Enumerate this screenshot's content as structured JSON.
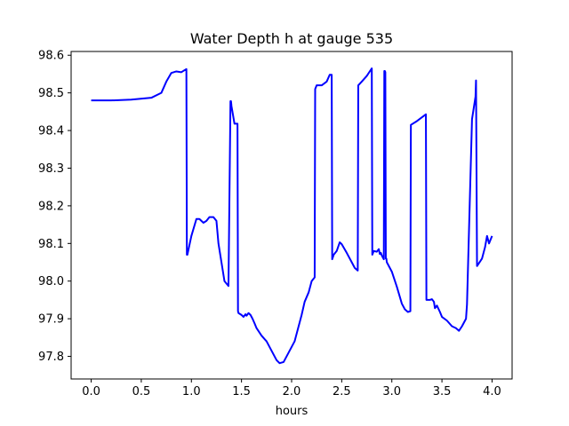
{
  "chart_data": {
    "type": "line",
    "title": "Water Depth h at gauge 535",
    "xlabel": "hours",
    "ylabel": "",
    "xlim": [
      -0.2,
      4.2
    ],
    "ylim": [
      97.74,
      98.61
    ],
    "xticks": [
      0.0,
      0.5,
      1.0,
      1.5,
      2.0,
      2.5,
      3.0,
      3.5,
      4.0
    ],
    "xtick_labels": [
      "0.0",
      "0.5",
      "1.0",
      "1.5",
      "2.0",
      "2.5",
      "3.0",
      "3.5",
      "4.0"
    ],
    "yticks": [
      97.8,
      97.9,
      98.0,
      98.1,
      98.2,
      98.3,
      98.4,
      98.5,
      98.6
    ],
    "ytick_labels": [
      "97.8",
      "97.9",
      "98.0",
      "98.1",
      "98.2",
      "98.3",
      "98.4",
      "98.5",
      "98.6"
    ],
    "grid": false,
    "line_color": "#0000ff",
    "series": [
      {
        "x": [
          0.0,
          0.2,
          0.4,
          0.6,
          0.7,
          0.75,
          0.8,
          0.85,
          0.9,
          0.93,
          0.95,
          0.955,
          0.96,
          1.0,
          1.05,
          1.08,
          1.12,
          1.15,
          1.18,
          1.22,
          1.25,
          1.27,
          1.3,
          1.33,
          1.37,
          1.39,
          1.395,
          1.4,
          1.43,
          1.46,
          1.465,
          1.47,
          1.5,
          1.52,
          1.54,
          1.55,
          1.57,
          1.59,
          1.61,
          1.63,
          1.65,
          1.7,
          1.75,
          1.8,
          1.85,
          1.88,
          1.92,
          1.95,
          2.0,
          2.03,
          2.07,
          2.1,
          2.13,
          2.17,
          2.2,
          2.23,
          2.235,
          2.25,
          2.3,
          2.35,
          2.38,
          2.4,
          2.405,
          2.42,
          2.45,
          2.48,
          2.5,
          2.55,
          2.6,
          2.63,
          2.66,
          2.665,
          2.7,
          2.75,
          2.8,
          2.805,
          2.82,
          2.85,
          2.87,
          2.88,
          2.89,
          2.9,
          2.92,
          2.925,
          2.93,
          2.935,
          2.94,
          2.945,
          2.95,
          2.97,
          3.0,
          3.05,
          3.1,
          3.13,
          3.16,
          3.185,
          3.19,
          3.25,
          3.3,
          3.34,
          3.345,
          3.35,
          3.38,
          3.4,
          3.42,
          3.43,
          3.45,
          3.48,
          3.5,
          3.55,
          3.6,
          3.64,
          3.67,
          3.7,
          3.74,
          3.75,
          3.8,
          3.835,
          3.84,
          3.85,
          3.9,
          3.93,
          3.95,
          3.97,
          4.0
        ],
        "y": [
          98.48,
          98.48,
          98.482,
          98.487,
          98.5,
          98.53,
          98.553,
          98.557,
          98.555,
          98.56,
          98.563,
          98.07,
          98.07,
          98.12,
          98.165,
          98.165,
          98.155,
          98.16,
          98.17,
          98.17,
          98.16,
          98.1,
          98.05,
          98.0,
          97.987,
          98.478,
          98.478,
          98.465,
          98.418,
          98.418,
          97.92,
          97.915,
          97.91,
          97.905,
          97.912,
          97.908,
          97.915,
          97.91,
          97.9,
          97.888,
          97.875,
          97.855,
          97.84,
          97.815,
          97.79,
          97.782,
          97.785,
          97.8,
          97.825,
          97.84,
          97.88,
          97.91,
          97.945,
          97.97,
          98.0,
          98.01,
          98.51,
          98.52,
          98.52,
          98.53,
          98.548,
          98.548,
          98.058,
          98.07,
          98.08,
          98.103,
          98.098,
          98.075,
          98.05,
          98.035,
          98.028,
          98.52,
          98.53,
          98.545,
          98.565,
          98.07,
          98.08,
          98.078,
          98.085,
          98.072,
          98.075,
          98.068,
          98.058,
          98.558,
          98.558,
          98.555,
          98.06,
          98.06,
          98.05,
          98.04,
          98.025,
          97.985,
          97.94,
          97.925,
          97.918,
          97.92,
          98.415,
          98.425,
          98.435,
          98.443,
          97.95,
          97.95,
          97.95,
          97.952,
          97.945,
          97.928,
          97.935,
          97.918,
          97.905,
          97.895,
          97.88,
          97.875,
          97.868,
          97.88,
          97.9,
          97.938,
          98.43,
          98.49,
          98.533,
          98.04,
          98.06,
          98.09,
          98.12,
          98.1,
          98.12
        ]
      }
    ]
  }
}
